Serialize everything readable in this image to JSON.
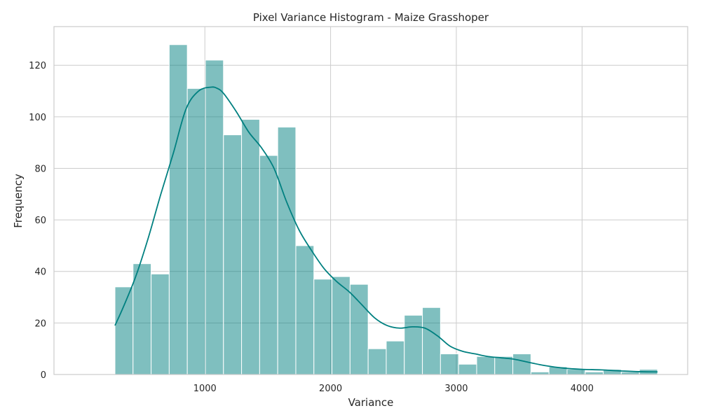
{
  "chart_data": {
    "type": "bar",
    "title": "Pixel Variance Histogram - Maize Grasshoper",
    "xlabel": "Variance",
    "ylabel": "Frequency",
    "xlim": [
      -200,
      4840
    ],
    "ylim": [
      0,
      135
    ],
    "xticks": [
      1000,
      2000,
      3000,
      4000
    ],
    "yticks": [
      0,
      20,
      40,
      60,
      80,
      100,
      120
    ],
    "grid": true,
    "bar_color": "#008080",
    "bar_opacity": 0.5,
    "kde_color": "#008080",
    "bins": {
      "edges": [
        285,
        428.8,
        572.7,
        716.5,
        860.3,
        1004.2,
        1148,
        1291.8,
        1435.7,
        1579.5,
        1723.3,
        1867.2,
        2011,
        2154.8,
        2298.7,
        2442.5,
        2586.3,
        2730.2,
        2874,
        3017.8,
        3161.7,
        3305.5,
        3449.3,
        3593.2,
        3737,
        3880.8,
        4024.7,
        4168.5,
        4312.3,
        4456.2,
        4600
      ],
      "counts": [
        34,
        43,
        39,
        128,
        111,
        122,
        93,
        99,
        85,
        96,
        50,
        37,
        38,
        35,
        10,
        13,
        23,
        26,
        8,
        4,
        7,
        7,
        8,
        1,
        3,
        2,
        1,
        2,
        1,
        2
      ]
    },
    "kde": {
      "x": [
        285,
        350,
        450,
        550,
        650,
        750,
        850,
        950,
        1050,
        1100,
        1150,
        1250,
        1350,
        1450,
        1550,
        1650,
        1750,
        1850,
        1950,
        2050,
        2150,
        2250,
        2350,
        2450,
        2550,
        2650,
        2750,
        2850,
        2950,
        3050,
        3150,
        3250,
        3350,
        3450,
        3550,
        3700,
        3850,
        4000,
        4150,
        4300,
        4450,
        4600
      ],
      "y": [
        19,
        26,
        38,
        53,
        70,
        86,
        103,
        110,
        111.5,
        111,
        109,
        102,
        94,
        88,
        80,
        67,
        56,
        48,
        41,
        36,
        32,
        27,
        22,
        19,
        18,
        18.5,
        18,
        15,
        11,
        9,
        8,
        7,
        6.5,
        6,
        5,
        3.5,
        2.5,
        2,
        1.8,
        1.4,
        1.1,
        1
      ]
    }
  }
}
